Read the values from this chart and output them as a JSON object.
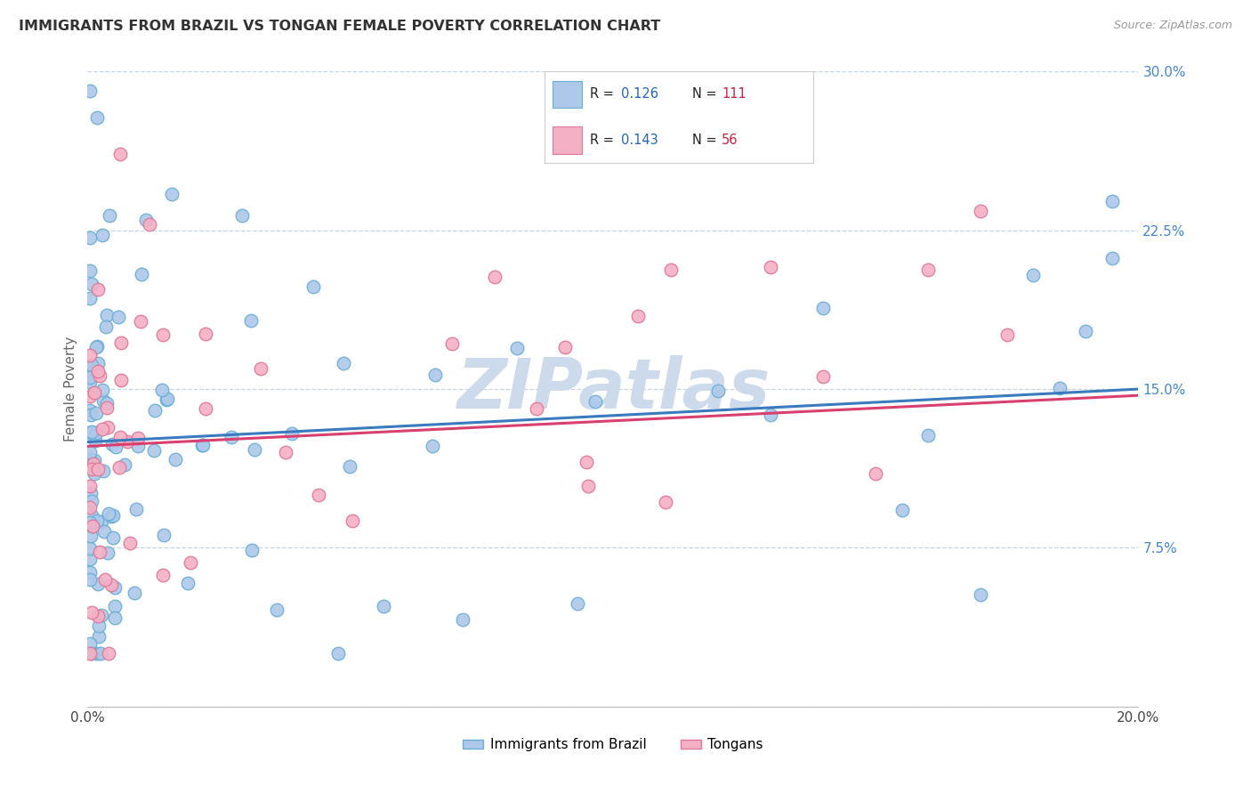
{
  "title": "IMMIGRANTS FROM BRAZIL VS TONGAN FEMALE POVERTY CORRELATION CHART",
  "source": "Source: ZipAtlas.com",
  "ylabel": "Female Poverty",
  "xlim": [
    0.0,
    0.2
  ],
  "ylim": [
    0.0,
    0.3
  ],
  "xtick_vals": [
    0.0,
    0.05,
    0.1,
    0.15,
    0.2
  ],
  "xtick_labels": [
    "0.0%",
    "",
    "",
    "",
    "20.0%"
  ],
  "ytick_vals": [
    0.0,
    0.075,
    0.15,
    0.225,
    0.3
  ],
  "ytick_labels": [
    "",
    "7.5%",
    "15.0%",
    "22.5%",
    "30.0%"
  ],
  "brazil_color": "#adc8e8",
  "brazil_edge_color": "#6aaed6",
  "tongan_color": "#f4b0c4",
  "tongan_edge_color": "#e07898",
  "brazil_line_color": "#3a7abf",
  "tongan_line_color": "#d94070",
  "brazil_R": 0.126,
  "brazil_N": 111,
  "tongan_R": 0.143,
  "tongan_N": 56,
  "watermark": "ZIPatlas",
  "watermark_color": "#ccdaeb",
  "legend_R_color": "#2266bb",
  "legend_N_color": "#cc2244",
  "background_color": "#ffffff",
  "grid_color": "#c8d4e0",
  "marker_size": 110,
  "trend_start_y": 0.125,
  "trend_end_y": 0.15
}
